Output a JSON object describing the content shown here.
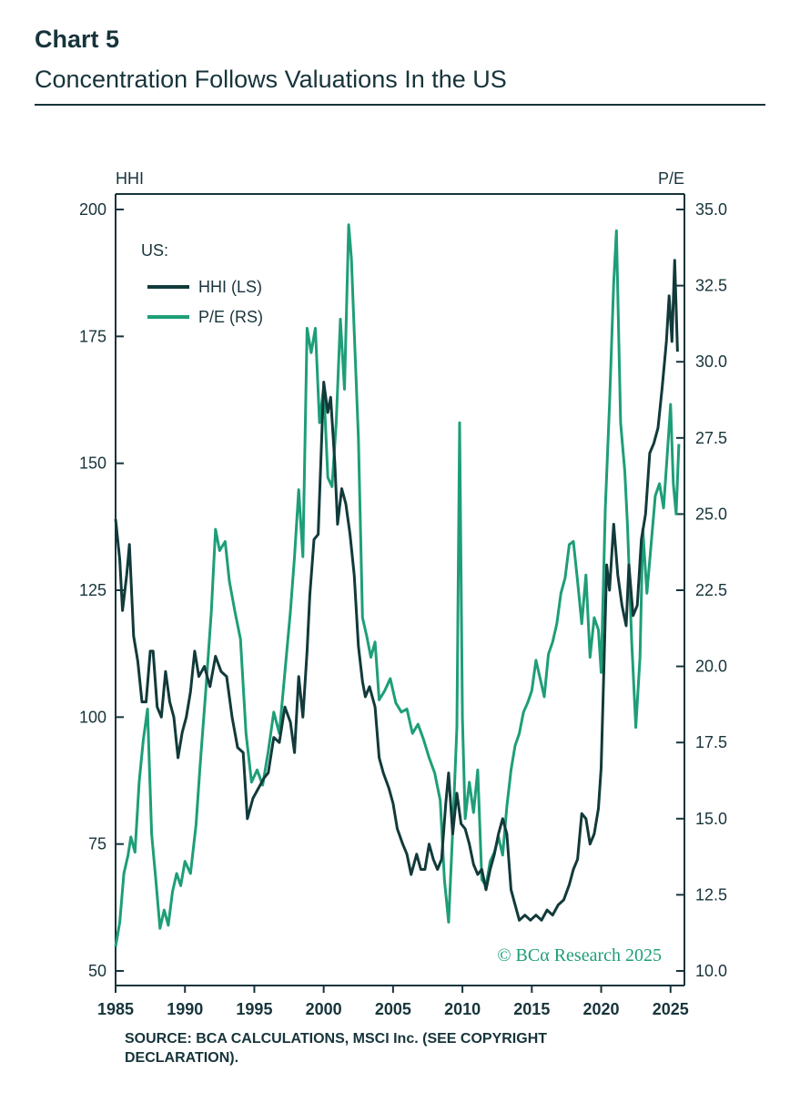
{
  "header": {
    "chart_label": "Chart 5",
    "subtitle": "Concentration Follows Valuations In the US"
  },
  "source_note": "SOURCE: BCA CALCULATIONS, MSCI Inc. (SEE COPYRIGHT DECLARATION).",
  "watermark": "© BCα Research 2025",
  "colors": {
    "hhi": "#123a3a",
    "pe": "#1e9e78",
    "axis": "#17343b"
  },
  "chart_data": {
    "type": "line",
    "title": "Concentration Follows Valuations In the US",
    "left_axis": {
      "label": "HHI",
      "range": [
        50,
        200
      ],
      "ticks": [
        50,
        75,
        100,
        125,
        150,
        175,
        200
      ]
    },
    "right_axis": {
      "label": "P/E",
      "range": [
        10,
        35
      ],
      "ticks": [
        "10.0",
        "12.5",
        "15.0",
        "17.5",
        "20.0",
        "22.5",
        "25.0",
        "27.5",
        "30.0",
        "32.5",
        "35.0"
      ]
    },
    "x_axis": {
      "range": [
        1985,
        2026
      ],
      "ticks": [
        1985,
        1990,
        1995,
        2000,
        2005,
        2010,
        2015,
        2020,
        2025
      ]
    },
    "legend": {
      "title": "US:",
      "placement": "top-left"
    },
    "grid": false,
    "series": [
      {
        "name": "HHI (LS)",
        "axis": "left",
        "points": [
          [
            1985.0,
            139
          ],
          [
            1985.3,
            131
          ],
          [
            1985.5,
            121
          ],
          [
            1985.8,
            128
          ],
          [
            1986.0,
            134
          ],
          [
            1986.3,
            116
          ],
          [
            1986.6,
            111
          ],
          [
            1986.9,
            103
          ],
          [
            1987.2,
            103
          ],
          [
            1987.5,
            113
          ],
          [
            1987.7,
            113
          ],
          [
            1988.0,
            102
          ],
          [
            1988.3,
            100
          ],
          [
            1988.6,
            109
          ],
          [
            1988.9,
            103
          ],
          [
            1989.2,
            100
          ],
          [
            1989.5,
            92
          ],
          [
            1989.8,
            97
          ],
          [
            1990.1,
            100
          ],
          [
            1990.4,
            105
          ],
          [
            1990.7,
            113
          ],
          [
            1991.0,
            108
          ],
          [
            1991.4,
            110
          ],
          [
            1991.8,
            106
          ],
          [
            1992.2,
            112
          ],
          [
            1992.6,
            109
          ],
          [
            1993.0,
            108
          ],
          [
            1993.4,
            100
          ],
          [
            1993.8,
            94
          ],
          [
            1994.2,
            93
          ],
          [
            1994.5,
            80
          ],
          [
            1994.9,
            84
          ],
          [
            1995.3,
            86
          ],
          [
            1995.7,
            88
          ],
          [
            1996.0,
            89
          ],
          [
            1996.4,
            96
          ],
          [
            1996.8,
            95
          ],
          [
            1997.2,
            102
          ],
          [
            1997.6,
            99
          ],
          [
            1997.9,
            93
          ],
          [
            1998.2,
            108
          ],
          [
            1998.5,
            100
          ],
          [
            1998.8,
            113
          ],
          [
            1999.0,
            124
          ],
          [
            1999.3,
            135
          ],
          [
            1999.6,
            136
          ],
          [
            2000.0,
            166
          ],
          [
            2000.3,
            160
          ],
          [
            2000.5,
            163
          ],
          [
            2000.8,
            150
          ],
          [
            2001.0,
            138
          ],
          [
            2001.3,
            145
          ],
          [
            2001.6,
            142
          ],
          [
            2001.9,
            136
          ],
          [
            2002.2,
            128
          ],
          [
            2002.5,
            114
          ],
          [
            2002.8,
            107
          ],
          [
            2003.0,
            104
          ],
          [
            2003.3,
            106
          ],
          [
            2003.7,
            102
          ],
          [
            2004.0,
            92
          ],
          [
            2004.3,
            89
          ],
          [
            2004.7,
            86
          ],
          [
            2005.0,
            83
          ],
          [
            2005.3,
            78
          ],
          [
            2005.7,
            75
          ],
          [
            2006.0,
            73
          ],
          [
            2006.3,
            69
          ],
          [
            2006.7,
            73
          ],
          [
            2007.0,
            70
          ],
          [
            2007.3,
            70
          ],
          [
            2007.6,
            75
          ],
          [
            2007.9,
            72
          ],
          [
            2008.2,
            70
          ],
          [
            2008.5,
            72
          ],
          [
            2008.8,
            83
          ],
          [
            2009.0,
            89
          ],
          [
            2009.3,
            77
          ],
          [
            2009.6,
            85
          ],
          [
            2009.9,
            79
          ],
          [
            2010.2,
            78
          ],
          [
            2010.5,
            75
          ],
          [
            2010.8,
            71
          ],
          [
            2011.1,
            69
          ],
          [
            2011.4,
            70
          ],
          [
            2011.7,
            66
          ],
          [
            2012.0,
            70
          ],
          [
            2012.3,
            73
          ],
          [
            2012.6,
            77
          ],
          [
            2012.9,
            80
          ],
          [
            2013.2,
            77
          ],
          [
            2013.5,
            66
          ],
          [
            2013.8,
            63
          ],
          [
            2014.1,
            60
          ],
          [
            2014.5,
            61
          ],
          [
            2014.9,
            60
          ],
          [
            2015.3,
            61
          ],
          [
            2015.7,
            60
          ],
          [
            2016.1,
            62
          ],
          [
            2016.5,
            61
          ],
          [
            2016.9,
            63
          ],
          [
            2017.3,
            64
          ],
          [
            2017.7,
            67
          ],
          [
            2018.0,
            70
          ],
          [
            2018.3,
            72
          ],
          [
            2018.6,
            81
          ],
          [
            2018.9,
            80
          ],
          [
            2019.2,
            75
          ],
          [
            2019.5,
            77
          ],
          [
            2019.8,
            82
          ],
          [
            2020.0,
            90
          ],
          [
            2020.2,
            110
          ],
          [
            2020.4,
            130
          ],
          [
            2020.6,
            125
          ],
          [
            2020.9,
            138
          ],
          [
            2021.2,
            128
          ],
          [
            2021.5,
            122
          ],
          [
            2021.8,
            118
          ],
          [
            2022.0,
            130
          ],
          [
            2022.3,
            120
          ],
          [
            2022.6,
            122
          ],
          [
            2022.9,
            135
          ],
          [
            2023.2,
            140
          ],
          [
            2023.5,
            152
          ],
          [
            2023.8,
            154
          ],
          [
            2024.1,
            157
          ],
          [
            2024.4,
            165
          ],
          [
            2024.7,
            174
          ],
          [
            2024.9,
            183
          ],
          [
            2025.1,
            174
          ],
          [
            2025.3,
            190
          ],
          [
            2025.5,
            172
          ]
        ]
      },
      {
        "name": "P/E (RS)",
        "axis": "right",
        "points": [
          [
            1985.0,
            10.8
          ],
          [
            1985.3,
            11.6
          ],
          [
            1985.6,
            13.2
          ],
          [
            1985.9,
            13.8
          ],
          [
            1986.1,
            14.4
          ],
          [
            1986.4,
            13.9
          ],
          [
            1986.7,
            16.2
          ],
          [
            1987.0,
            17.6
          ],
          [
            1987.3,
            18.6
          ],
          [
            1987.6,
            14.5
          ],
          [
            1987.9,
            13.0
          ],
          [
            1988.2,
            11.4
          ],
          [
            1988.5,
            12.0
          ],
          [
            1988.8,
            11.5
          ],
          [
            1989.1,
            12.6
          ],
          [
            1989.4,
            13.2
          ],
          [
            1989.7,
            12.8
          ],
          [
            1990.0,
            13.6
          ],
          [
            1990.4,
            13.2
          ],
          [
            1990.8,
            14.8
          ],
          [
            1991.1,
            16.8
          ],
          [
            1991.5,
            19.2
          ],
          [
            1991.9,
            21.8
          ],
          [
            1992.2,
            24.5
          ],
          [
            1992.5,
            23.8
          ],
          [
            1992.9,
            24.1
          ],
          [
            1993.2,
            22.8
          ],
          [
            1993.6,
            21.8
          ],
          [
            1994.0,
            20.9
          ],
          [
            1994.4,
            17.8
          ],
          [
            1994.8,
            16.2
          ],
          [
            1995.2,
            16.6
          ],
          [
            1995.6,
            16.1
          ],
          [
            1996.0,
            17.2
          ],
          [
            1996.4,
            18.5
          ],
          [
            1996.8,
            17.8
          ],
          [
            1997.2,
            19.8
          ],
          [
            1997.6,
            21.8
          ],
          [
            1997.9,
            23.6
          ],
          [
            1998.2,
            25.8
          ],
          [
            1998.5,
            23.6
          ],
          [
            1998.8,
            31.1
          ],
          [
            1999.1,
            30.3
          ],
          [
            1999.4,
            31.1
          ],
          [
            1999.7,
            28.0
          ],
          [
            2000.0,
            29.2
          ],
          [
            2000.3,
            26.2
          ],
          [
            2000.6,
            25.9
          ],
          [
            2000.9,
            28.0
          ],
          [
            2001.2,
            31.4
          ],
          [
            2001.5,
            29.1
          ],
          [
            2001.8,
            34.5
          ],
          [
            2002.0,
            33.4
          ],
          [
            2002.2,
            31.0
          ],
          [
            2002.5,
            27.5
          ],
          [
            2002.8,
            21.6
          ],
          [
            2003.1,
            21.0
          ],
          [
            2003.4,
            20.3
          ],
          [
            2003.7,
            20.8
          ],
          [
            2004.0,
            18.9
          ],
          [
            2004.4,
            19.2
          ],
          [
            2004.8,
            19.6
          ],
          [
            2005.2,
            18.8
          ],
          [
            2005.6,
            18.5
          ],
          [
            2006.0,
            18.6
          ],
          [
            2006.4,
            17.8
          ],
          [
            2006.8,
            18.1
          ],
          [
            2007.2,
            17.6
          ],
          [
            2007.6,
            17.0
          ],
          [
            2008.0,
            16.5
          ],
          [
            2008.4,
            15.6
          ],
          [
            2008.7,
            13.0
          ],
          [
            2009.0,
            11.6
          ],
          [
            2009.3,
            14.6
          ],
          [
            2009.6,
            18.0
          ],
          [
            2009.8,
            28.0
          ],
          [
            2010.0,
            18.3
          ],
          [
            2010.2,
            15.0
          ],
          [
            2010.5,
            16.2
          ],
          [
            2010.8,
            15.2
          ],
          [
            2011.1,
            16.6
          ],
          [
            2011.4,
            13.0
          ],
          [
            2011.7,
            12.8
          ],
          [
            2012.0,
            13.6
          ],
          [
            2012.3,
            13.9
          ],
          [
            2012.6,
            14.4
          ],
          [
            2012.9,
            13.8
          ],
          [
            2013.2,
            15.4
          ],
          [
            2013.5,
            16.6
          ],
          [
            2013.8,
            17.4
          ],
          [
            2014.1,
            17.8
          ],
          [
            2014.4,
            18.5
          ],
          [
            2014.7,
            18.8
          ],
          [
            2015.0,
            19.2
          ],
          [
            2015.3,
            20.2
          ],
          [
            2015.6,
            19.6
          ],
          [
            2015.9,
            19.0
          ],
          [
            2016.2,
            20.4
          ],
          [
            2016.5,
            20.8
          ],
          [
            2016.8,
            21.4
          ],
          [
            2017.1,
            22.4
          ],
          [
            2017.4,
            22.9
          ],
          [
            2017.7,
            24.0
          ],
          [
            2018.0,
            24.1
          ],
          [
            2018.3,
            22.8
          ],
          [
            2018.6,
            21.4
          ],
          [
            2018.9,
            23.0
          ],
          [
            2019.2,
            20.3
          ],
          [
            2019.5,
            21.6
          ],
          [
            2019.8,
            21.2
          ],
          [
            2020.0,
            19.8
          ],
          [
            2020.3,
            25.2
          ],
          [
            2020.6,
            28.6
          ],
          [
            2020.9,
            32.6
          ],
          [
            2021.1,
            34.3
          ],
          [
            2021.4,
            28.0
          ],
          [
            2021.7,
            26.4
          ],
          [
            2021.9,
            24.6
          ],
          [
            2022.2,
            20.8
          ],
          [
            2022.5,
            18.0
          ],
          [
            2022.8,
            20.3
          ],
          [
            2023.0,
            24.5
          ],
          [
            2023.3,
            22.4
          ],
          [
            2023.6,
            24.0
          ],
          [
            2023.9,
            25.6
          ],
          [
            2024.2,
            26.0
          ],
          [
            2024.5,
            25.2
          ],
          [
            2024.8,
            27.2
          ],
          [
            2025.0,
            28.6
          ],
          [
            2025.2,
            26.0
          ],
          [
            2025.4,
            25.0
          ],
          [
            2025.6,
            27.3
          ]
        ]
      }
    ]
  }
}
